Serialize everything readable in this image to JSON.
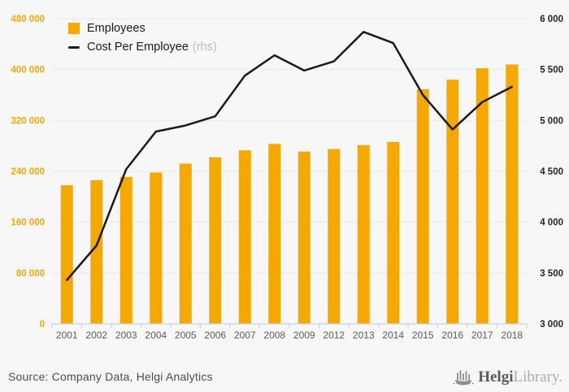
{
  "legend": {
    "rhs_suffix": "(rhs)"
  },
  "footer": {
    "source": "Source: Company Data, Helgi Analytics",
    "logo_primary": "Helgi",
    "logo_secondary": "Library."
  },
  "colors": {
    "background": "#f7f7f7",
    "bar": "#F5A800",
    "line": "#1a1a1a",
    "gridline": "#e9e9e9",
    "axis_line": "#c7d2e0",
    "left_axis_text": "#F5A800",
    "right_axis_text": "#262626",
    "x_axis_text": "#5a5a5a",
    "legend_rhs_text": "#bcbcbc",
    "source_text": "#4d4d4d",
    "logo_icon": "#8b8d90"
  },
  "chart_data": {
    "type": "bar",
    "title": "",
    "xlabel": "",
    "ylabel": "",
    "categories": [
      "2001",
      "2002",
      "2003",
      "2004",
      "2005",
      "2006",
      "2007",
      "2008",
      "2009",
      "2012",
      "2013",
      "2014",
      "2015",
      "2016",
      "2017",
      "2018"
    ],
    "series": [
      {
        "name": "Employees",
        "type": "bar",
        "axis": "left",
        "values": [
          218000,
          226000,
          231000,
          238000,
          252000,
          262000,
          273000,
          283000,
          271000,
          275000,
          281000,
          286000,
          369000,
          384000,
          402000,
          408000
        ]
      },
      {
        "name": "Cost Per Employee",
        "type": "line",
        "axis": "right",
        "values": [
          3430,
          3770,
          4520,
          4890,
          4950,
          5040,
          5440,
          5640,
          5490,
          5580,
          5870,
          5760,
          5250,
          4910,
          5180,
          5330
        ]
      }
    ],
    "left_axis": {
      "min": 0,
      "max": 480000,
      "step": 80000,
      "tick_labels": [
        "0",
        "80 000",
        "160 000",
        "240 000",
        "320 000",
        "400 000",
        "480 000"
      ]
    },
    "right_axis": {
      "min": 3000,
      "max": 6000,
      "step": 500,
      "tick_labels": [
        "3 000",
        "3 500",
        "4 000",
        "4 500",
        "5 000",
        "5 500",
        "6 000"
      ]
    },
    "grid": true,
    "legend_position": "top-left"
  }
}
